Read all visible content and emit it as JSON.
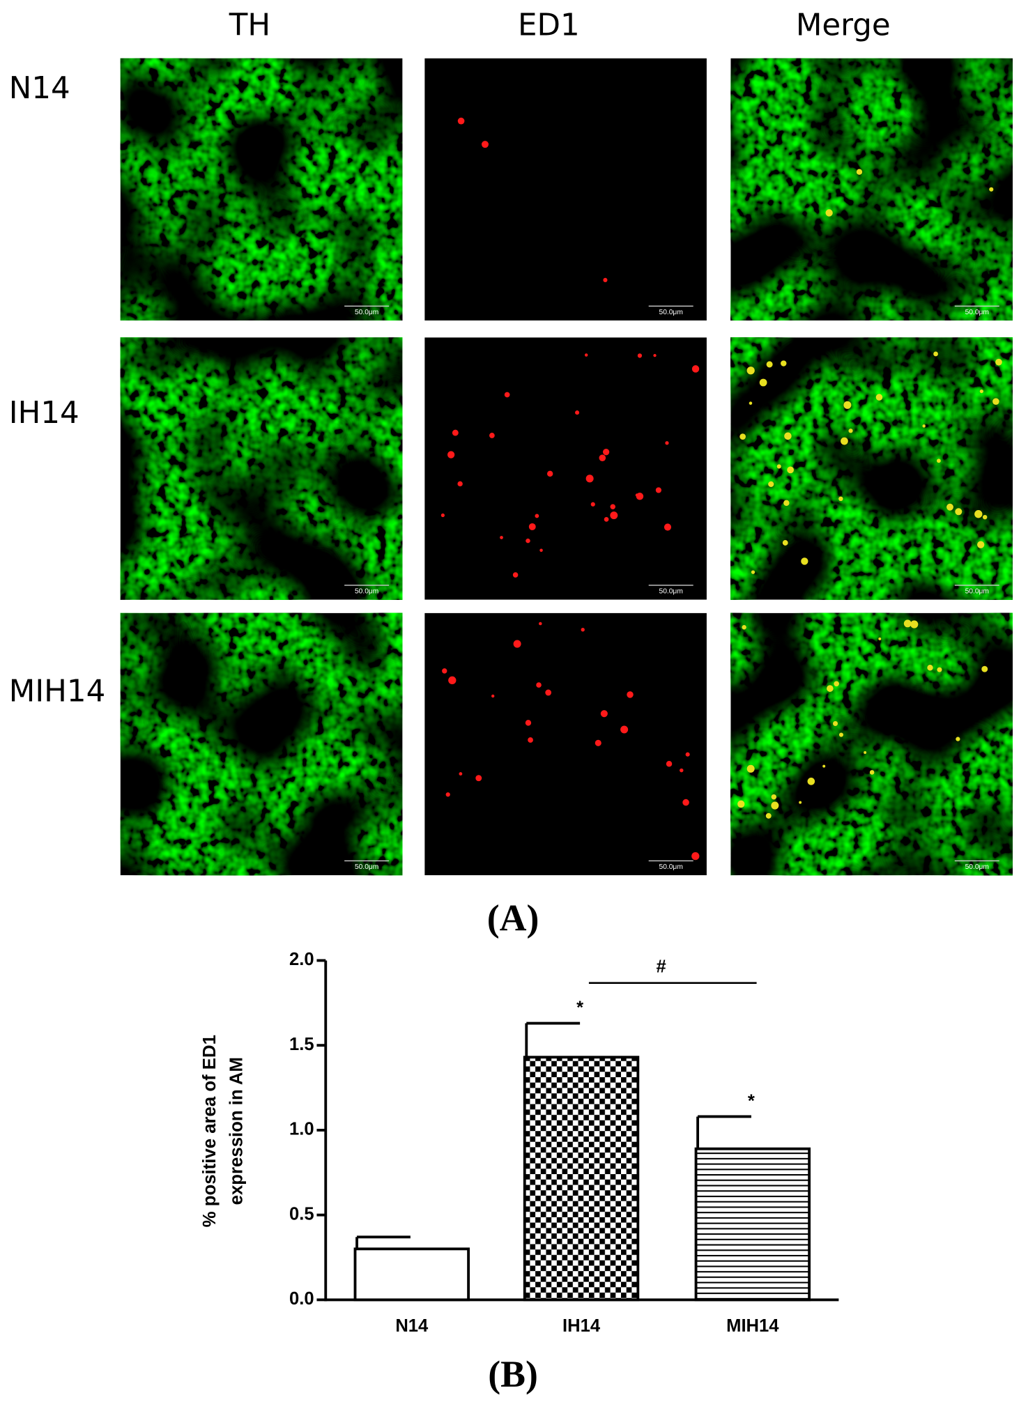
{
  "figure": {
    "column_labels": [
      "TH",
      "ED1",
      "Merge"
    ],
    "row_labels": [
      "N14",
      "IH14",
      "MIH14"
    ],
    "scale_bar": "50.0μm",
    "panel_a": "(A)",
    "panel_b": "(B)"
  },
  "chart_data": {
    "type": "bar",
    "y_label": [
      "% positive area of ED1",
      "expression in AM"
    ],
    "categories": [
      "N14",
      "IH14",
      "MIH14"
    ],
    "values": [
      0.3,
      1.43,
      0.89
    ],
    "errors": [
      0.07,
      0.2,
      0.19
    ],
    "patterns": [
      "solid-white",
      "checker",
      "horizontal-lines"
    ],
    "significance": [
      null,
      "*",
      "*"
    ],
    "comparison_label": "#",
    "color": "#000000",
    "ylim": [
      0,
      2
    ],
    "yticks": [
      {
        "value": 0,
        "label": "0.0"
      },
      {
        "value": 0.5,
        "label": "0.5"
      },
      {
        "value": 1,
        "label": "1.0"
      },
      {
        "value": 1.5,
        "label": "1.5"
      },
      {
        "value": 2,
        "label": "2.0"
      }
    ]
  }
}
